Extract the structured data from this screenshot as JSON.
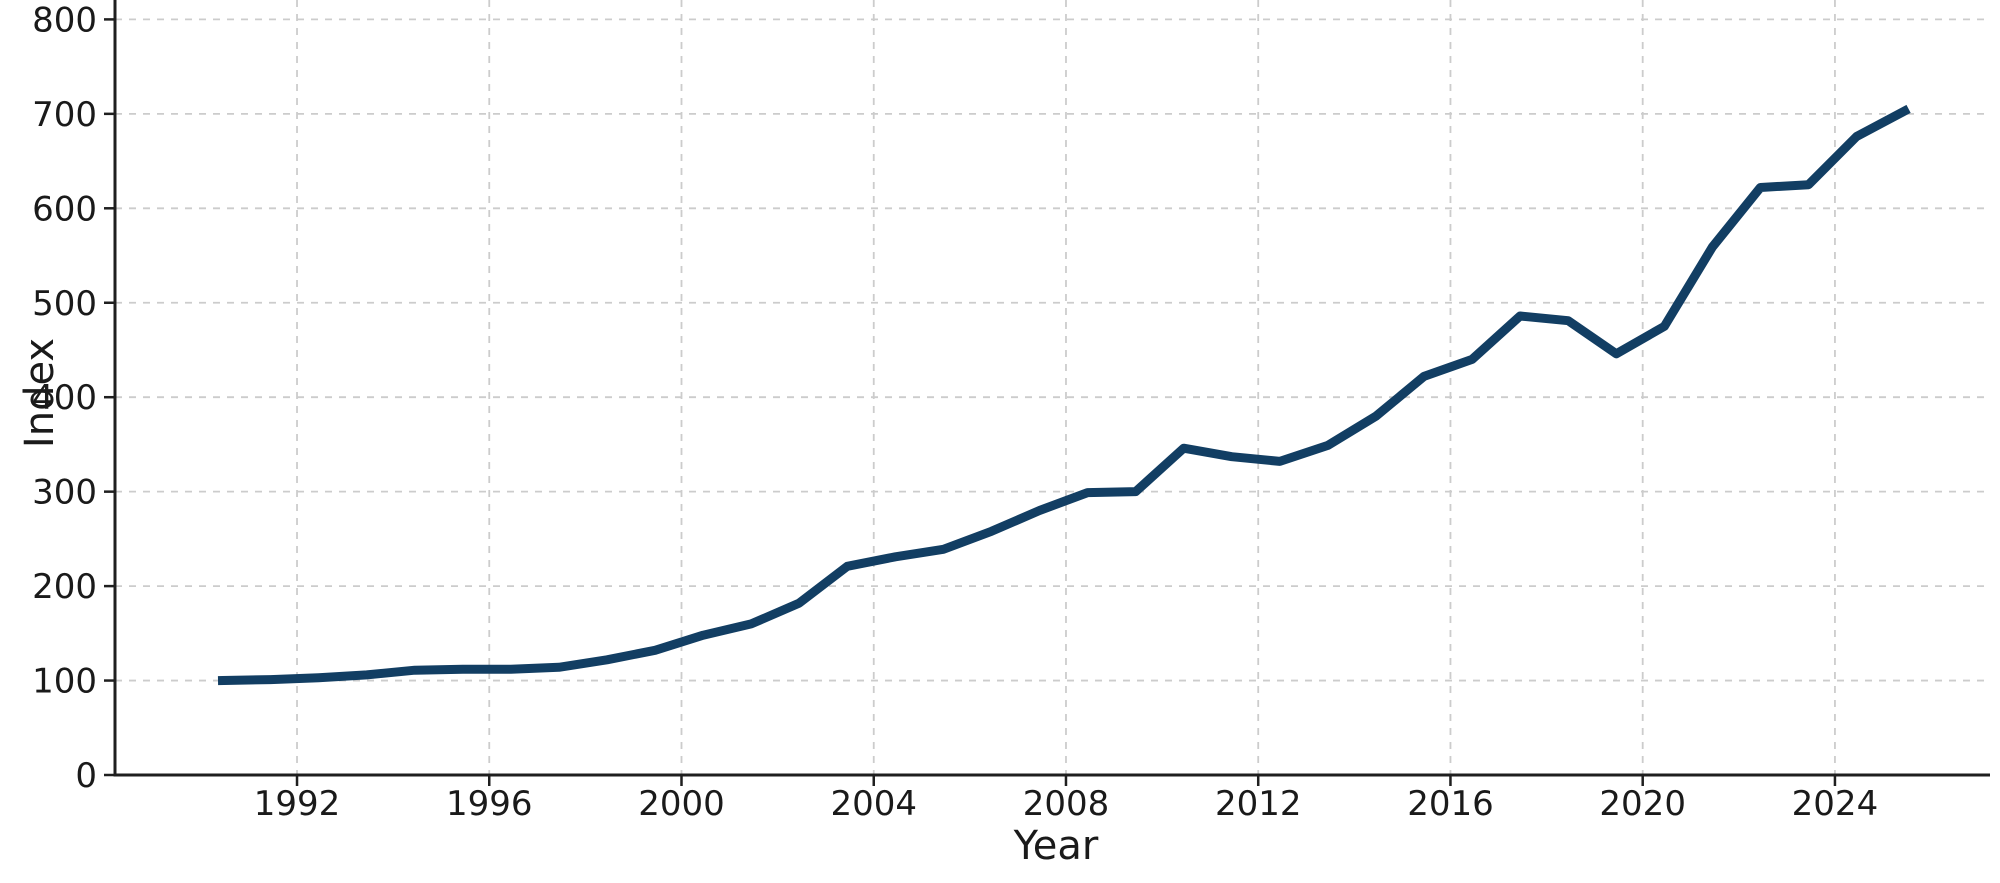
{
  "page": {
    "background": "#ffffff"
  },
  "chart_data": {
    "type": "line",
    "title": "",
    "xlabel": "Year",
    "ylabel": "Index",
    "x": [
      1990,
      1991,
      1992,
      1993,
      1994,
      1995,
      1996,
      1997,
      1998,
      1999,
      2000,
      2001,
      2002,
      2003,
      2004,
      2005,
      2006,
      2007,
      2008,
      2009,
      2010,
      2011,
      2012,
      2013,
      2014,
      2015,
      2016,
      2017,
      2018,
      2019,
      2020,
      2021,
      2022,
      2023,
      2024,
      2025
    ],
    "series": [
      {
        "name": "Index",
        "values": [
          100,
          101,
          103,
          106,
          111,
          112,
          112,
          114,
          122,
          132,
          148,
          160,
          182,
          221,
          231,
          239,
          258,
          280,
          299,
          300,
          346,
          337,
          332,
          349,
          380,
          422,
          440,
          486,
          481,
          446,
          475,
          559,
          622,
          625,
          676,
          703
        ]
      }
    ],
    "xticks": [
      1992,
      1996,
      2000,
      2004,
      2008,
      2012,
      2016,
      2020,
      2024
    ],
    "yticks": [
      0,
      100,
      200,
      300,
      400,
      500,
      600,
      700,
      800
    ],
    "xlim": [
      1988.2,
      2027.0
    ],
    "ylim": [
      0,
      820
    ],
    "grid": "dashed-both-axes",
    "legend": "none",
    "line_color": "#123e63",
    "grid_color": "#cccccc",
    "axis_color": "#1f1f1f",
    "text_color": "#1a1a1a",
    "x_plot_offset_years": 0.45
  }
}
